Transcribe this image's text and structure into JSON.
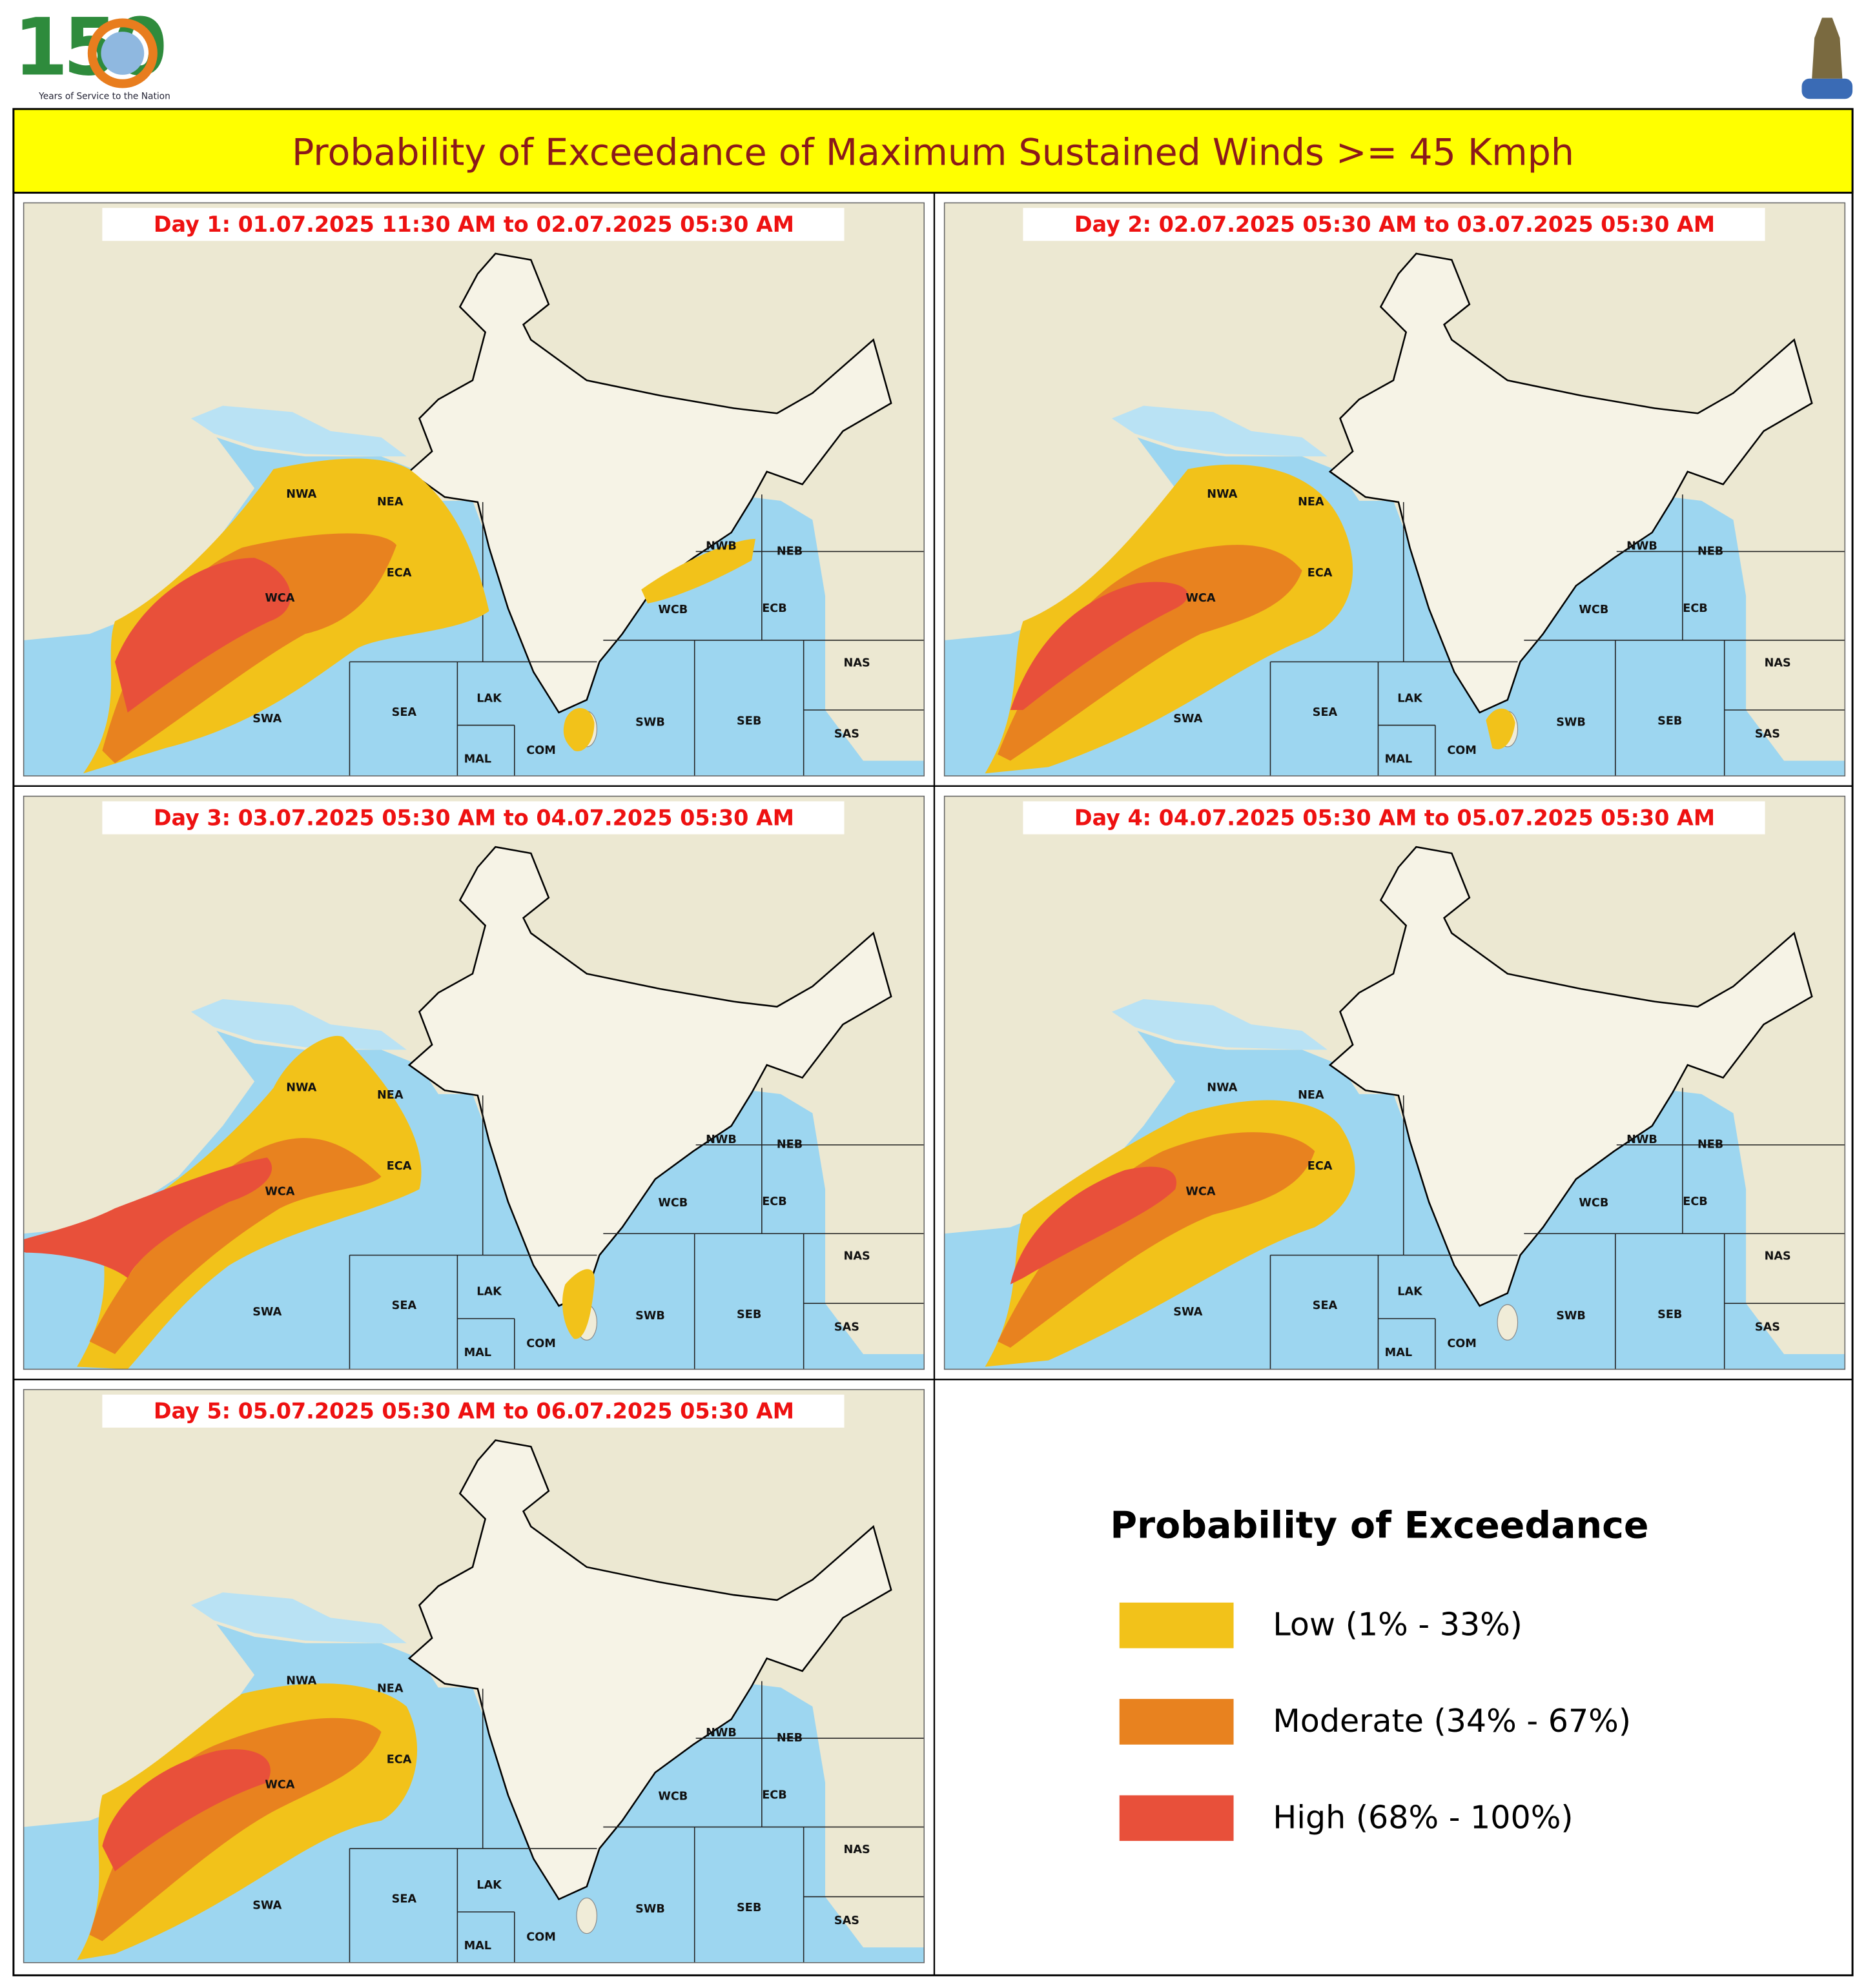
{
  "logo": {
    "number": "150",
    "tagline": "Years of Service to the Nation"
  },
  "title": "Probability of Exceedance of Maximum Sustained Winds >= 45 Kmph",
  "regions": [
    "NWA",
    "NEA",
    "ECA",
    "WCA",
    "SWA",
    "SEA",
    "LAK",
    "MAL",
    "COM",
    "SWB",
    "SEB",
    "WCB",
    "ECB",
    "NWB",
    "NEB",
    "NAS",
    "SAS"
  ],
  "panels": [
    {
      "label": "Day 1: 01.07.2025 11:30 AM to 02.07.2025 05:30 AM"
    },
    {
      "label": "Day 2: 02.07.2025 05:30 AM to 03.07.2025 05:30 AM"
    },
    {
      "label": "Day 3: 03.07.2025 05:30 AM to 04.07.2025 05:30 AM"
    },
    {
      "label": "Day 4: 04.07.2025 05:30 AM to 05.07.2025 05:30 AM"
    },
    {
      "label": "Day 5: 05.07.2025 05:30 AM to 06.07.2025 05:30 AM"
    }
  ],
  "legend": {
    "title": "Probability of Exceedance",
    "items": [
      {
        "label": "Low (1% - 33%)",
        "color": "#f2c21a"
      },
      {
        "label": "Moderate (34% - 67%)",
        "color": "#e8821f"
      },
      {
        "label": "High (68% - 100%)",
        "color": "#e8503a"
      }
    ]
  }
}
